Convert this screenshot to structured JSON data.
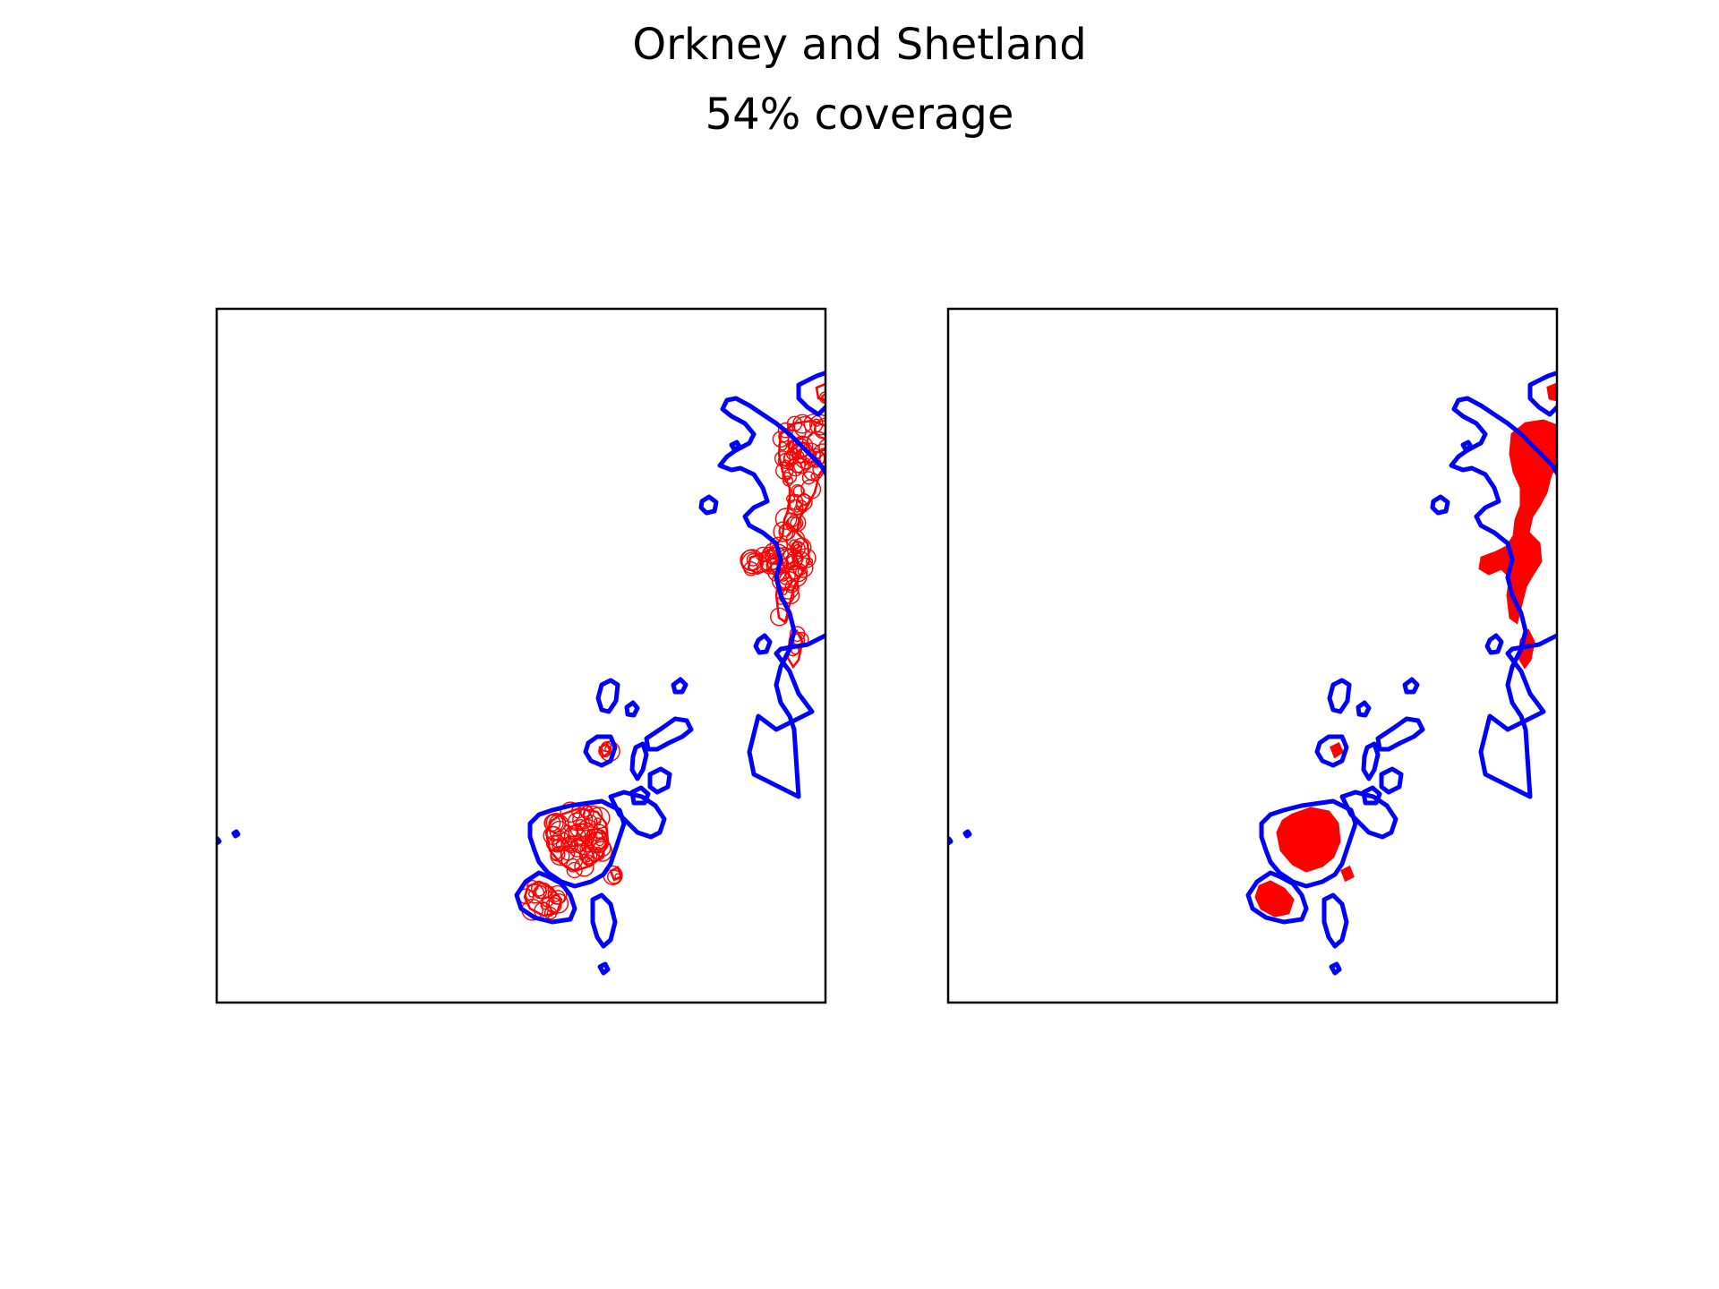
{
  "figure": {
    "title": "Orkney and Shetland",
    "subtitle": "54% coverage"
  },
  "colors": {
    "coastline": "#0000ff",
    "coverage": "#ff0000",
    "frame": "#000000",
    "background": "#ffffff"
  },
  "map_data": {
    "region": "Orkney and Shetland",
    "coverage_percent": 54,
    "panels": [
      {
        "name": "circles",
        "coverage_style": "circle outlines"
      },
      {
        "name": "filled",
        "coverage_style": "filled area"
      }
    ]
  }
}
